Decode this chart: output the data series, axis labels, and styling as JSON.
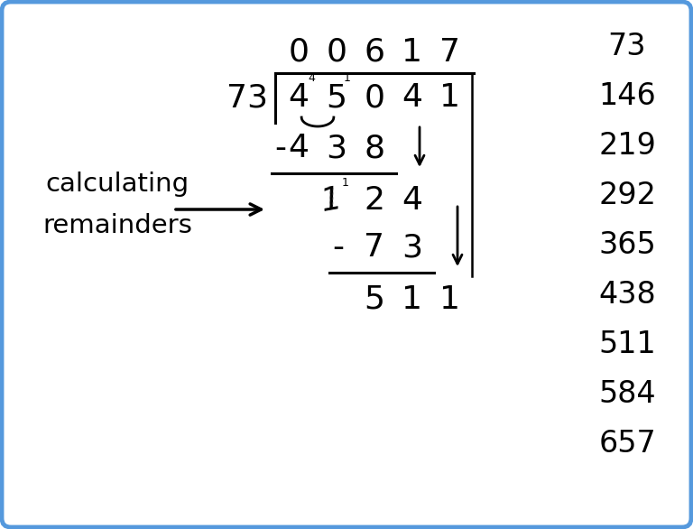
{
  "bg_color": "#ffffff",
  "border_color": "#5599dd",
  "border_linewidth": 3.5,
  "figsize": [
    7.68,
    5.86
  ],
  "dpi": 100,
  "multiples": [
    "73",
    "146",
    "219",
    "292",
    "365",
    "438",
    "511",
    "584",
    "657"
  ],
  "quotient_digits": [
    "0",
    "0",
    "6",
    "1",
    "7"
  ],
  "dividend_digits": [
    "4",
    "5",
    "0",
    "4",
    "1"
  ],
  "divisor": "73",
  "label_line1": "calculating",
  "label_line2": "remainders",
  "font_size_main": 26,
  "font_size_label": 21,
  "font_size_multiples": 24,
  "font_size_super": 9
}
